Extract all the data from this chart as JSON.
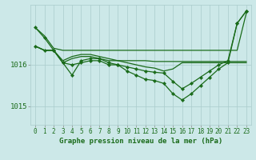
{
  "xlabel": "Graphe pression niveau de la mer (hPa)",
  "bg_color": "#cce8e8",
  "line_color": "#1a6b1a",
  "grid_color": "#aacccc",
  "ylim": [
    1014.55,
    1017.45
  ],
  "xlim": [
    -0.5,
    23.5
  ],
  "yticks": [
    1015,
    1016
  ],
  "xtick_labels": [
    "0",
    "1",
    "2",
    "3",
    "4",
    "5",
    "6",
    "7",
    "8",
    "9",
    "10",
    "11",
    "12",
    "13",
    "14",
    "15",
    "16",
    "17",
    "18",
    "19",
    "20",
    "21",
    "22",
    "23"
  ],
  "series": [
    {
      "y": [
        1016.9,
        1016.7,
        1016.4,
        1016.35,
        1016.35,
        1016.35,
        1016.35,
        1016.35,
        1016.35,
        1016.35,
        1016.35,
        1016.35,
        1016.35,
        1016.35,
        1016.35,
        1016.35,
        1016.35,
        1016.35,
        1016.35,
        1016.35,
        1016.35,
        1016.35,
        1016.35,
        1017.25
      ],
      "marker": false
    },
    {
      "y": [
        1016.45,
        1016.35,
        1016.35,
        1016.1,
        1016.2,
        1016.25,
        1016.25,
        1016.2,
        1016.15,
        1016.1,
        1016.1,
        1016.1,
        1016.1,
        1016.08,
        1016.08,
        1016.08,
        1016.08,
        1016.08,
        1016.08,
        1016.08,
        1016.08,
        1016.08,
        1016.08,
        1016.08
      ],
      "marker": false
    },
    {
      "y": [
        1016.45,
        1016.35,
        1016.35,
        1016.05,
        1016.15,
        1016.2,
        1016.2,
        1016.15,
        1016.1,
        1016.1,
        1016.05,
        1016.0,
        1015.95,
        1015.92,
        1015.85,
        1015.9,
        1016.05,
        1016.05,
        1016.05,
        1016.05,
        1016.05,
        1016.05,
        1016.05,
        1016.05
      ],
      "marker": false
    },
    {
      "y": [
        1016.9,
        1016.65,
        1016.35,
        1016.05,
        1015.75,
        1016.1,
        1016.15,
        1016.15,
        1016.05,
        1016.0,
        1015.85,
        1015.75,
        1015.65,
        1015.62,
        1015.55,
        1015.3,
        1015.15,
        1015.3,
        1015.5,
        1015.7,
        1015.9,
        1016.05,
        1017.0,
        1017.3
      ],
      "marker": true
    },
    {
      "y": [
        1016.45,
        1016.35,
        1016.35,
        1016.05,
        1016.0,
        1016.05,
        1016.1,
        1016.1,
        1016.0,
        1016.0,
        1015.95,
        1015.9,
        1015.85,
        1015.82,
        1015.8,
        1015.6,
        1015.42,
        1015.55,
        1015.7,
        1015.85,
        1016.0,
        1016.1,
        1017.0,
        1017.3
      ],
      "marker": true
    }
  ],
  "markersize": 2.2,
  "linewidth": 0.9,
  "tick_fontsize": 5.5,
  "ytick_fontsize": 6.5,
  "xlabel_fontsize": 6.5
}
